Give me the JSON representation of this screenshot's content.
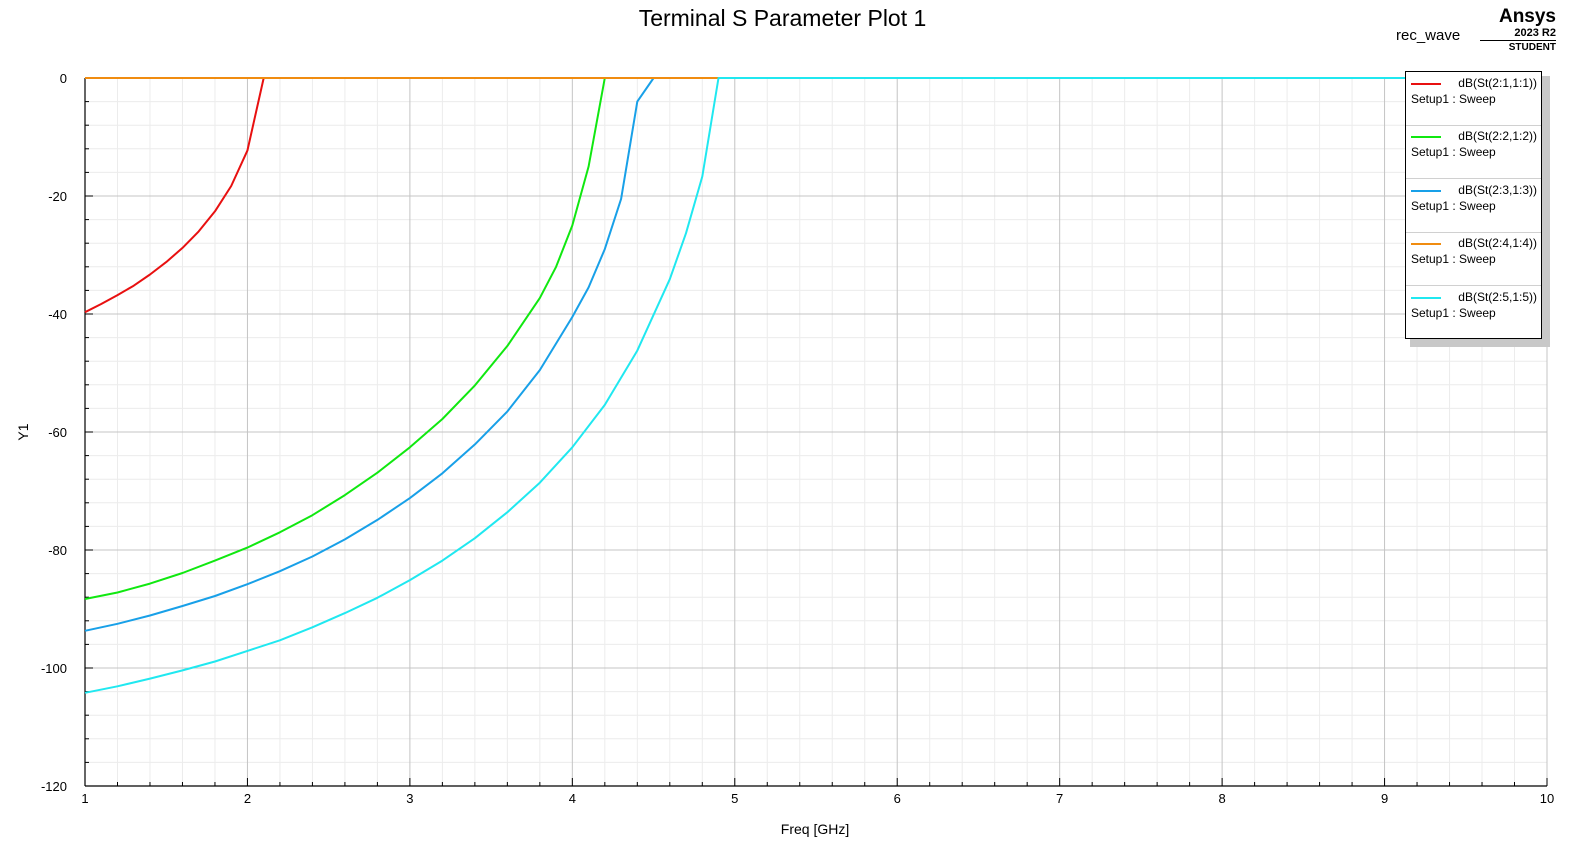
{
  "chart_data": {
    "type": "line",
    "title": "Terminal S Parameter Plot 1",
    "project_label": "rec_wave",
    "xlabel": "Freq [GHz]",
    "ylabel": "Y1",
    "xlim": [
      1,
      10
    ],
    "ylim": [
      -120,
      0
    ],
    "xticks": [
      1,
      2,
      3,
      4,
      5,
      6,
      7,
      8,
      9,
      10
    ],
    "yticks": [
      0,
      -20,
      -40,
      -60,
      -80,
      -100,
      -120
    ],
    "grid": true,
    "legend_position": "top-right",
    "series": [
      {
        "name": "dB(St(2:1,1:1))",
        "subtitle": "Setup1 : Sweep",
        "color": "#e81010",
        "x": [
          1.0,
          1.1,
          1.2,
          1.3,
          1.4,
          1.5,
          1.6,
          1.7,
          1.8,
          1.9,
          2.0,
          2.1,
          2.2,
          10.0
        ],
        "y": [
          -39.7,
          -38.3,
          -36.8,
          -35.2,
          -33.3,
          -31.2,
          -28.8,
          -26.0,
          -22.6,
          -18.3,
          -12.3,
          0,
          0,
          0
        ]
      },
      {
        "name": "dB(St(2:2,1:2))",
        "subtitle": "Setup1 : Sweep",
        "color": "#10e810",
        "x": [
          1.0,
          1.2,
          1.4,
          1.6,
          1.8,
          2.0,
          2.2,
          2.4,
          2.6,
          2.8,
          3.0,
          3.2,
          3.4,
          3.6,
          3.8,
          3.9,
          4.0,
          4.1,
          4.2,
          4.3,
          10.0
        ],
        "y": [
          -88.3,
          -87.2,
          -85.7,
          -83.9,
          -81.8,
          -79.6,
          -77.0,
          -74.1,
          -70.7,
          -66.9,
          -62.6,
          -57.8,
          -52.1,
          -45.4,
          -37.3,
          -32.0,
          -25.0,
          -15.0,
          0,
          0,
          0
        ]
      },
      {
        "name": "dB(St(2:3,1:3))",
        "subtitle": "Setup1 : Sweep",
        "color": "#18a0e8",
        "x": [
          1.0,
          1.2,
          1.4,
          1.6,
          1.8,
          2.0,
          2.2,
          2.4,
          2.6,
          2.8,
          3.0,
          3.2,
          3.4,
          3.6,
          3.8,
          4.0,
          4.1,
          4.2,
          4.3,
          4.4,
          4.5,
          10.0
        ],
        "y": [
          -93.7,
          -92.5,
          -91.1,
          -89.5,
          -87.8,
          -85.8,
          -83.6,
          -81.1,
          -78.2,
          -74.9,
          -71.2,
          -67.0,
          -62.1,
          -56.5,
          -49.5,
          -40.5,
          -35.5,
          -29.0,
          -20.5,
          -4.0,
          0,
          0
        ]
      },
      {
        "name": "dB(St(2:4,1:4))",
        "subtitle": "Setup1 : Sweep",
        "color": "#f08c10",
        "x": [
          1.0,
          10.0
        ],
        "y": [
          0,
          0
        ]
      },
      {
        "name": "dB(St(2:5,1:5))",
        "subtitle": "Setup1 : Sweep",
        "color": "#20e8f0",
        "x": [
          1.0,
          1.2,
          1.4,
          1.6,
          1.8,
          2.0,
          2.2,
          2.4,
          2.6,
          2.8,
          3.0,
          3.2,
          3.4,
          3.6,
          3.8,
          4.0,
          4.2,
          4.4,
          4.6,
          4.7,
          4.8,
          4.9,
          5.0,
          10.0
        ],
        "y": [
          -104.2,
          -103.1,
          -101.8,
          -100.4,
          -98.9,
          -97.1,
          -95.3,
          -93.1,
          -90.7,
          -88.1,
          -85.1,
          -81.8,
          -78.0,
          -73.6,
          -68.6,
          -62.6,
          -55.4,
          -46.2,
          -34.1,
          -26.3,
          -16.7,
          0,
          0,
          0
        ]
      }
    ]
  },
  "branding": {
    "name": "Ansys",
    "version": "2023 R2",
    "edition": "STUDENT"
  }
}
